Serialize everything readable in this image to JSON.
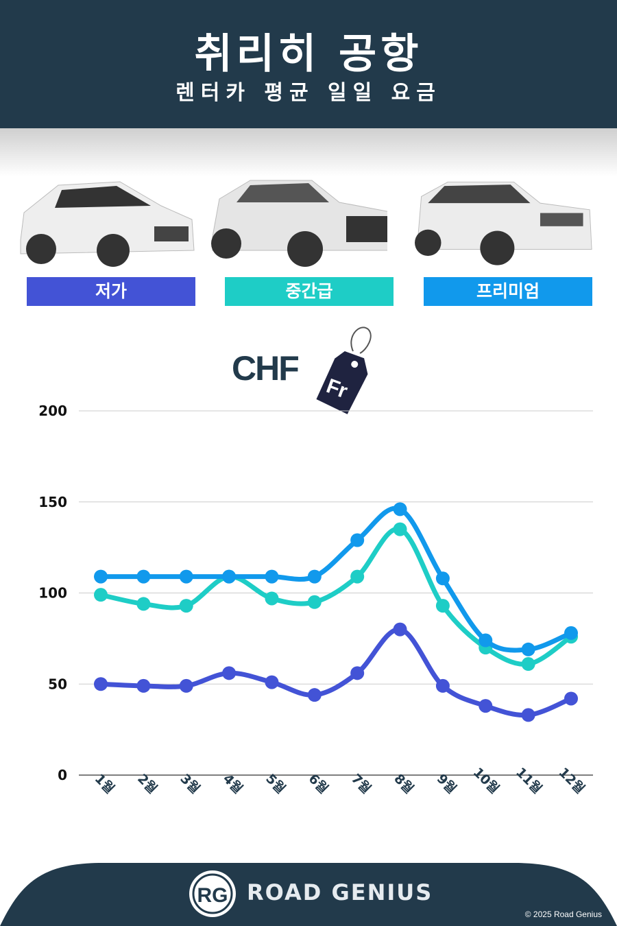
{
  "header": {
    "title": "취리히 공항",
    "subtitle": "렌터카 평균 일일 요금"
  },
  "categories": [
    {
      "label": "저가",
      "color": "#4353d6"
    },
    {
      "label": "중간급",
      "color": "#1ecdc6"
    },
    {
      "label": "프리미엄",
      "color": "#1199ec"
    }
  ],
  "currency": {
    "code": "CHF",
    "tag": "Fr"
  },
  "chart_data": {
    "type": "line",
    "categories": [
      "1월",
      "2월",
      "3월",
      "4월",
      "5월",
      "6월",
      "7월",
      "8월",
      "9월",
      "10월",
      "11월",
      "12월"
    ],
    "series": [
      {
        "name": "저가",
        "color": "#4353d6",
        "values": [
          50,
          49,
          49,
          56,
          51,
          44,
          56,
          80,
          49,
          38,
          33,
          42
        ]
      },
      {
        "name": "중간급",
        "color": "#1ecdc6",
        "values": [
          99,
          94,
          93,
          109,
          97,
          95,
          109,
          135,
          93,
          70,
          61,
          76
        ]
      },
      {
        "name": "프리미엄",
        "color": "#1199ec",
        "values": [
          109,
          109,
          109,
          109,
          109,
          109,
          129,
          146,
          108,
          74,
          69,
          78
        ]
      }
    ],
    "yticks": [
      0,
      50,
      100,
      150,
      200
    ],
    "ylim": [
      0,
      200
    ],
    "grid": true
  },
  "footer": {
    "brand": "ROAD GENIUS",
    "logo": "RG",
    "copyright": "© 2025 Road Genius"
  }
}
